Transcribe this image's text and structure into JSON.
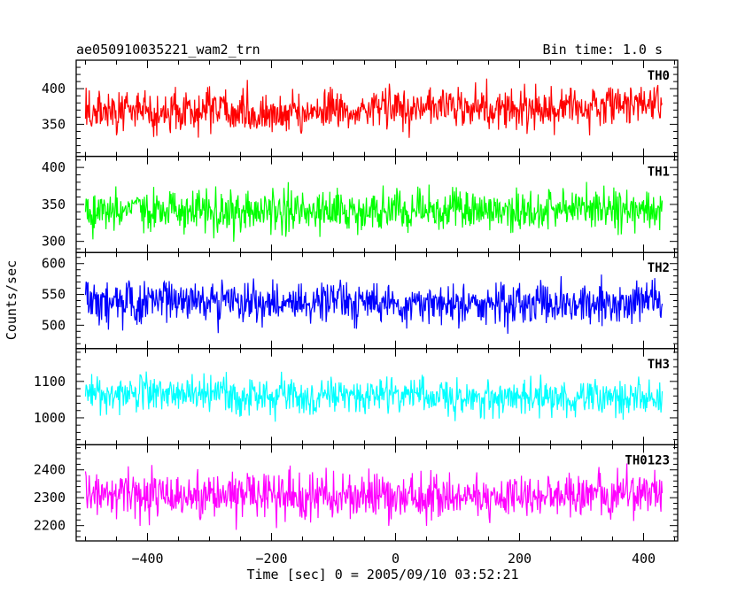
{
  "chart_data": {
    "type": "line",
    "title": "ae050910035221_wam2_trn",
    "subtitle": "Bin time: 1.0 s",
    "xlabel": "Time [sec] 0 = 2005/09/10 03:52:21",
    "ylabel": "Counts/sec",
    "xlim": [
      -515,
      455
    ],
    "x_ticks": [
      -400,
      -200,
      0,
      200,
      400
    ],
    "x_tick_labels": [
      "−400",
      "−200",
      "0",
      "200",
      "400"
    ],
    "x_range": [
      -500,
      430
    ],
    "series": [
      {
        "name": "TH0",
        "color": "#ff0000",
        "ylim": [
          305,
          440
        ],
        "yticks": [
          350,
          400
        ],
        "ytick_labels": [
          "350",
          "400"
        ],
        "mean": [
          [
            -500,
            368
          ],
          [
            -300,
            368
          ],
          [
            -200,
            366
          ],
          [
            0,
            372
          ],
          [
            200,
            372
          ],
          [
            430,
            380
          ]
        ],
        "noise_amplitude": 26
      },
      {
        "name": "TH1",
        "color": "#00ff00",
        "ylim": [
          285,
          415
        ],
        "yticks": [
          300,
          350,
          400
        ],
        "ytick_labels": [
          "300",
          "350",
          "400"
        ],
        "mean": [
          [
            -500,
            340
          ],
          [
            -200,
            340
          ],
          [
            0,
            342
          ],
          [
            200,
            342
          ],
          [
            430,
            345
          ]
        ],
        "noise_amplitude": 25
      },
      {
        "name": "TH2",
        "color": "#0000ff",
        "ylim": [
          462,
          618
        ],
        "yticks": [
          500,
          550,
          600
        ],
        "ytick_labels": [
          "500",
          "550",
          "600"
        ],
        "mean": [
          [
            -500,
            538
          ],
          [
            -200,
            538
          ],
          [
            0,
            535
          ],
          [
            200,
            533
          ],
          [
            430,
            538
          ]
        ],
        "noise_amplitude": 30
      },
      {
        "name": "TH3",
        "color": "#00ffff",
        "ylim": [
          926,
          1190
        ],
        "yticks": [
          1000,
          1100
        ],
        "ytick_labels": [
          "1000",
          "1100"
        ],
        "mean": [
          [
            -500,
            1068
          ],
          [
            -300,
            1065
          ],
          [
            -100,
            1058
          ],
          [
            0,
            1060
          ],
          [
            200,
            1055
          ],
          [
            430,
            1058
          ]
        ],
        "noise_amplitude": 45
      },
      {
        "name": "TH0123",
        "color": "#ff00ff",
        "ylim": [
          2145,
          2490
        ],
        "yticks": [
          2200,
          2300,
          2400
        ],
        "ytick_labels": [
          "2200",
          "2300",
          "2400"
        ],
        "mean": [
          [
            -500,
            2310
          ],
          [
            -300,
            2310
          ],
          [
            0,
            2300
          ],
          [
            200,
            2300
          ],
          [
            430,
            2330
          ]
        ],
        "noise_amplitude": 75
      }
    ]
  }
}
